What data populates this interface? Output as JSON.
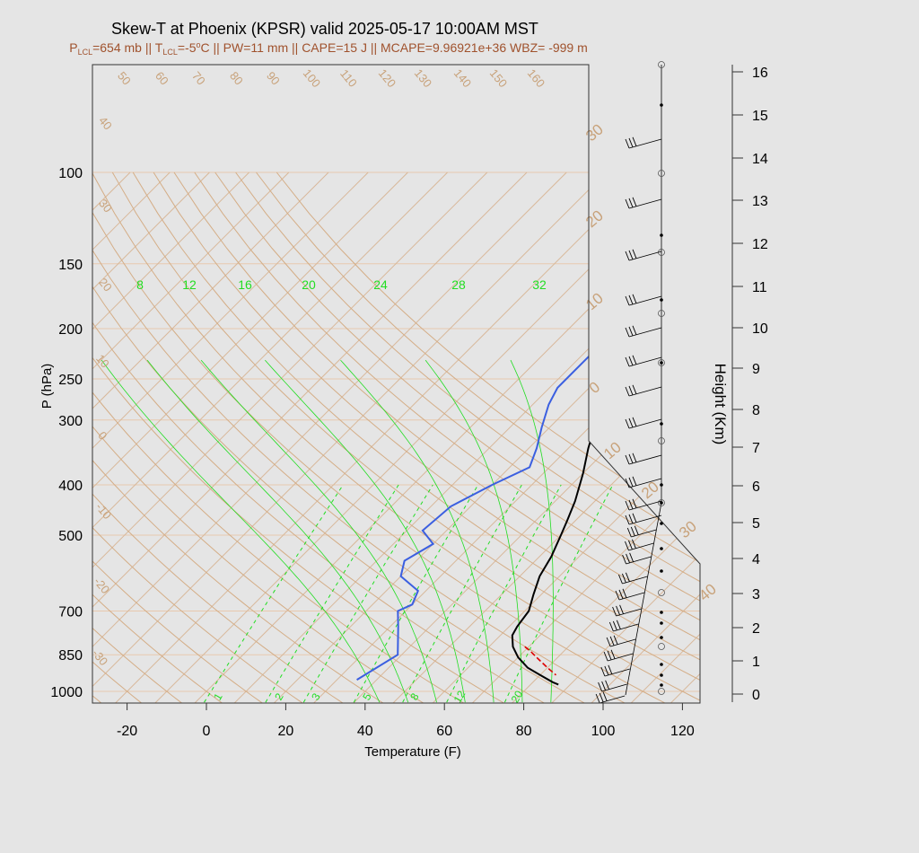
{
  "colors": {
    "background": "#e5e5e5",
    "isotherm": "#d8b89a",
    "adiabat": "#d4ad86",
    "isobar": "#e8c9ae",
    "mixing_ratio": "#22dd22",
    "temperature": "#000000",
    "dewpoint": "#3b5fe0",
    "parcel": "#dd0000",
    "subtitle": "#a0522d",
    "iso_label": "#c8a27a"
  },
  "chart_data": {
    "type": "line",
    "title": "Skew-T at Phoenix (KPSR) valid 2025-05-17 10:00AM MST",
    "subtitle": {
      "p_lcl": "654 mb",
      "t_lcl": "-5",
      "pw": "11 mm",
      "cape": "15 J",
      "mcape": "9.96921e+36",
      "wbz": "-999 m"
    },
    "xlabel": "Temperature (F)",
    "ylabel": "P (hPa)",
    "y2label": "Height (Km)",
    "xlim": [
      -28,
      125
    ],
    "pressure_ticks": [
      "100",
      "150",
      "200",
      "250",
      "300",
      "400",
      "500",
      "700",
      "850",
      "1000"
    ],
    "temperature_ticks": [
      "-20",
      "0",
      "20",
      "40",
      "60",
      "80",
      "100",
      "120"
    ],
    "height_ticks": [
      "0",
      "1",
      "2",
      "3",
      "4",
      "5",
      "6",
      "7",
      "8",
      "9",
      "10",
      "11",
      "12",
      "13",
      "14",
      "15",
      "16"
    ],
    "isotherm_labels": [
      "50",
      "60",
      "70",
      "80",
      "90",
      "100",
      "110",
      "120",
      "130",
      "140",
      "150",
      "160",
      "40",
      "30",
      "20",
      "10",
      "0",
      "-10",
      "-20",
      "-30"
    ],
    "right_isotherm_labels": [
      "30",
      "20",
      "10",
      "0",
      "10",
      "20",
      "30",
      "40"
    ],
    "mixing_ratio_top_labels": [
      "8",
      "12",
      "16",
      "20",
      "24",
      "28",
      "32"
    ],
    "mixing_ratio_bottom_labels": [
      "1",
      "2",
      "3",
      "5",
      "8",
      "12",
      "20"
    ],
    "series": [
      {
        "x": [
          87,
          85,
          80,
          75,
          70,
          66,
          63,
          62,
          61,
          58,
          55,
          53,
          50,
          48,
          45,
          40,
          35,
          30,
          25,
          22,
          20,
          22,
          25,
          30,
          40,
          50,
          60
        ],
        "y": [
          970,
          960,
          930,
          900,
          860,
          820,
          780,
          750,
          700,
          650,
          600,
          550,
          500,
          470,
          430,
          380,
          340,
          300,
          270,
          250,
          230,
          210,
          200,
          180,
          160,
          130,
          100
        ]
      },
      {
        "x": [
          35,
          39,
          32,
          28,
          30,
          28,
          20,
          17,
          20,
          14,
          15,
          20,
          25,
          22,
          18,
          14,
          12,
          12,
          12,
          14,
          18,
          24
        ],
        "y": [
          950,
          850,
          750,
          700,
          680,
          640,
          600,
          560,
          520,
          490,
          440,
          400,
          370,
          340,
          310,
          280,
          260,
          230,
          200,
          170,
          140,
          100
        ]
      },
      {
        "x": [
          69,
          72,
          76,
          80,
          84
        ],
        "y": [
          820,
          840,
          870,
          900,
          930
        ]
      }
    ]
  }
}
